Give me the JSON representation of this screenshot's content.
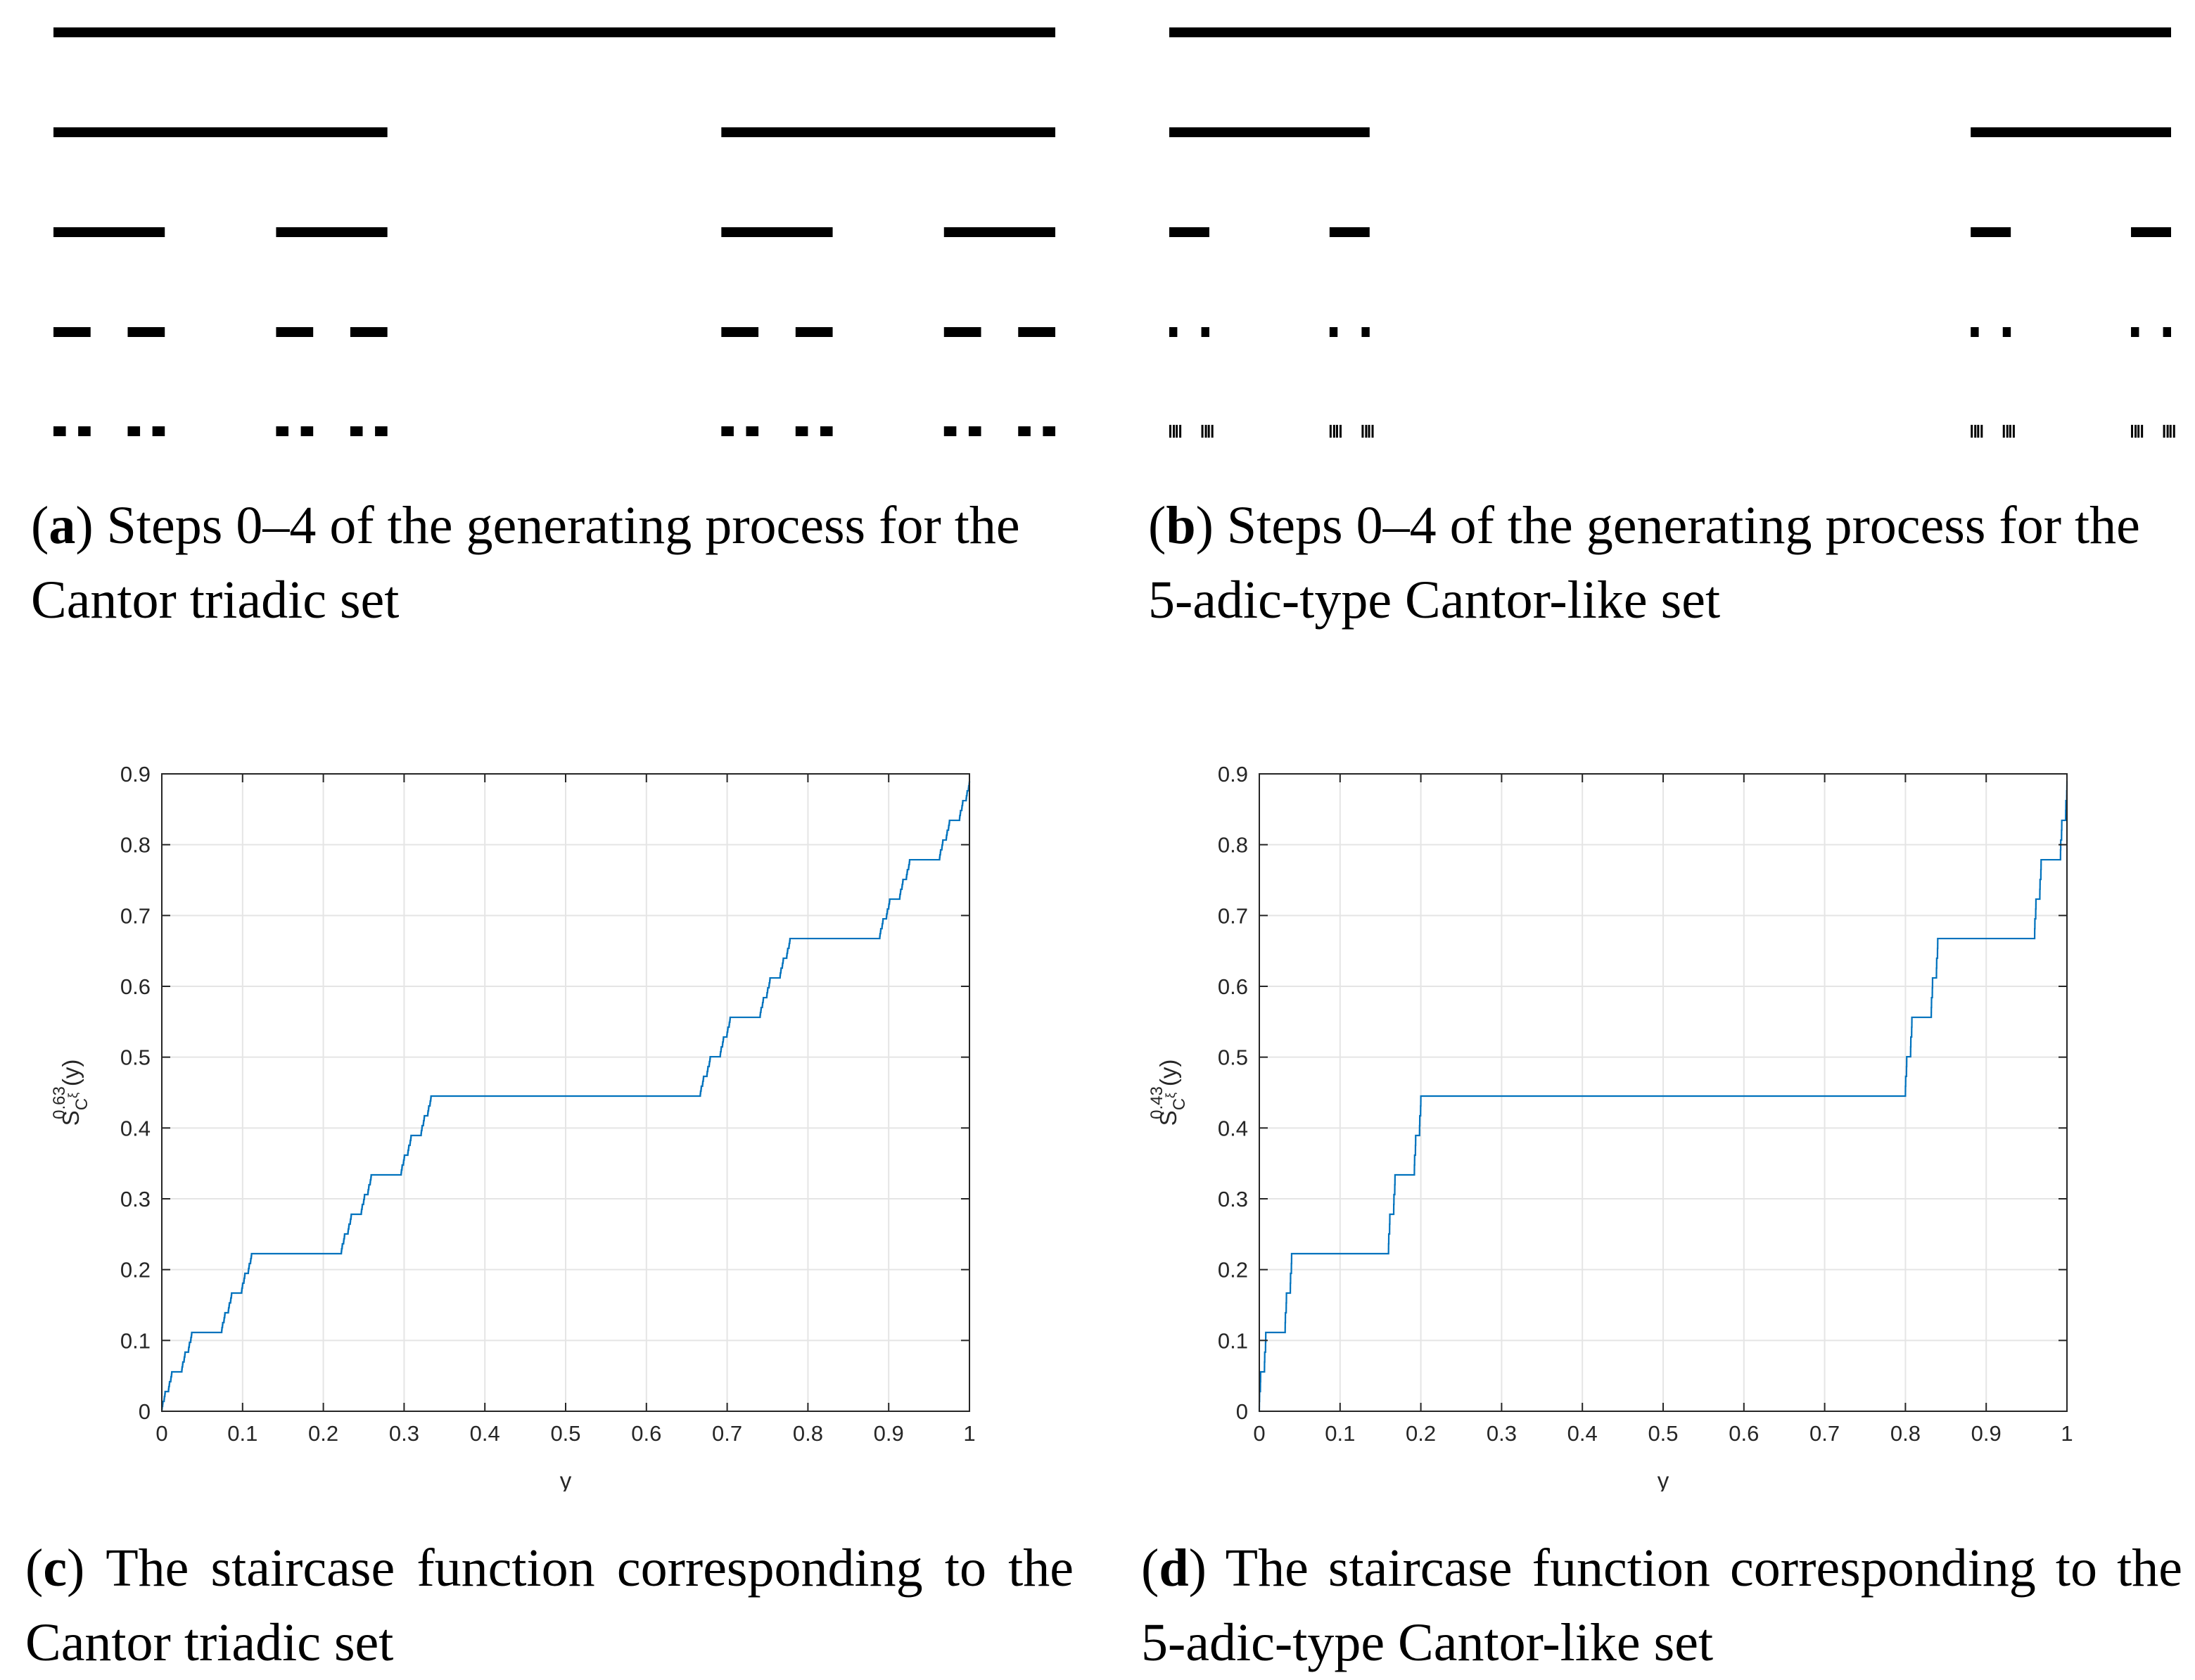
{
  "captions": {
    "a": {
      "letter": "a",
      "text": " Steps 0–4 of the generating process for the Cantor triadic set"
    },
    "b": {
      "letter": "b",
      "text": " Steps 0–4 of the generating process for the 5-adic-type Cantor-like set"
    },
    "c": {
      "letter": "c",
      "text": " The staircase function corresponding to the Cantor triadic set"
    },
    "d": {
      "letter": "d",
      "text": " The staircase function corresponding to the 5-adic-type Cantor-like set"
    }
  },
  "colors": {
    "bars": "#000000",
    "curve": "#0072BD",
    "grid": "#e5e5e5",
    "axis": "#262626"
  },
  "chart_data": [
    {
      "type": "bar",
      "panel": "a",
      "description_free": true,
      "generator": {
        "scales": [
          0.3333333,
          0.3333333
        ],
        "offsets": [
          0,
          0.6666667
        ]
      },
      "steps": [
        0,
        1,
        2,
        3,
        4
      ]
    },
    {
      "type": "bar",
      "panel": "b",
      "generator": {
        "scales": [
          0.2,
          0.2
        ],
        "offsets": [
          0,
          0.8
        ]
      },
      "steps": [
        0,
        1,
        2,
        3,
        4
      ]
    },
    {
      "type": "line",
      "panel": "c",
      "generator": {
        "scales": [
          0.3333333,
          0.3333333
        ],
        "offsets": [
          0,
          0.6666667
        ]
      },
      "dimension_label": "0.63",
      "x_ticks": [
        "0",
        "0.1",
        "0.2",
        "0.3",
        "0.4",
        "0.5",
        "0.6",
        "0.7",
        "0.8",
        "0.9",
        "1"
      ],
      "y_ticks": [
        "0",
        "0.1",
        "0.2",
        "0.3",
        "0.4",
        "0.5",
        "0.6",
        "0.7",
        "0.8",
        "0.9"
      ],
      "xlim": [
        0,
        1
      ],
      "ylim": [
        0,
        0.9
      ],
      "xlabel": "y",
      "ylabel": "S",
      "ylabel_sub": "C",
      "ylabel_subsup": "ξ",
      "ylabel_sup": "0.63",
      "ylabel_arg": "(y)",
      "grid": true,
      "end_value": 0.89
    },
    {
      "type": "line",
      "panel": "d",
      "generator": {
        "scales": [
          0.2,
          0.2
        ],
        "offsets": [
          0,
          0.8
        ]
      },
      "dimension_label": "0.43",
      "x_ticks": [
        "0",
        "0.1",
        "0.2",
        "0.3",
        "0.4",
        "0.5",
        "0.6",
        "0.7",
        "0.8",
        "0.9",
        "1"
      ],
      "y_ticks": [
        "0",
        "0.1",
        "0.2",
        "0.3",
        "0.4",
        "0.5",
        "0.6",
        "0.7",
        "0.8",
        "0.9"
      ],
      "xlim": [
        0,
        1
      ],
      "ylim": [
        0,
        0.9
      ],
      "xlabel": "y",
      "ylabel": "S",
      "ylabel_sub": "C",
      "ylabel_subsup": "ξ",
      "ylabel_sup": "0.43",
      "ylabel_arg": "(y)",
      "grid": true,
      "end_value": 0.89
    }
  ]
}
